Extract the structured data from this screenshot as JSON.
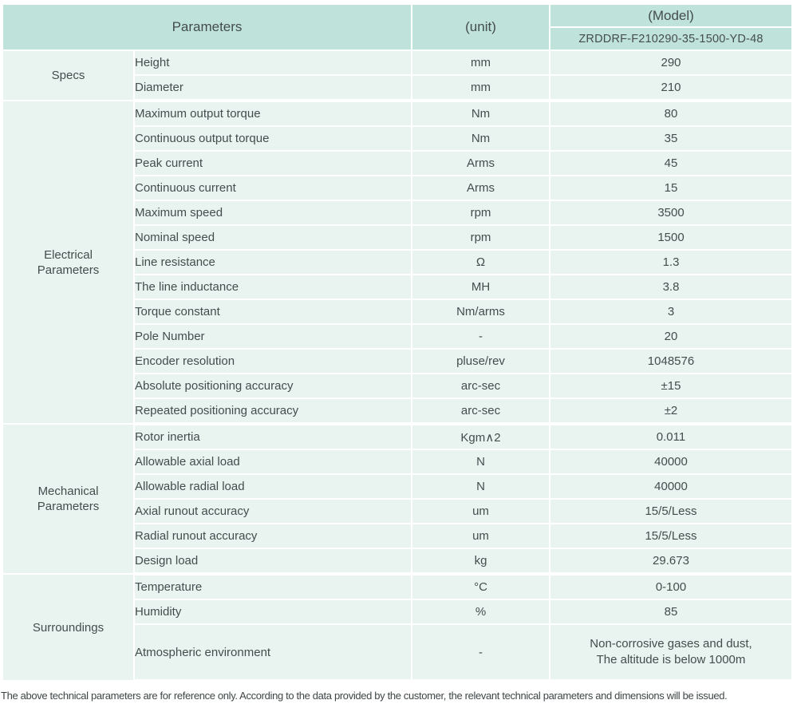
{
  "colors": {
    "header_bg": "#bfe3da",
    "row_bg": "#e9f4f1",
    "divider": "#ffffff",
    "text": "#454c4e"
  },
  "header": {
    "parameters_label": "Parameters",
    "unit_label": "(unit)",
    "model_label": "(Model)",
    "model_value": "ZRDDRF-F210290-35-1500-YD-48"
  },
  "groups": [
    {
      "name": "Specs",
      "rows": [
        {
          "param": "Height",
          "unit": "mm",
          "value": "290"
        },
        {
          "param": "Diameter",
          "unit": "mm",
          "value": "210"
        }
      ]
    },
    {
      "name": "Electrical\nParameters",
      "rows": [
        {
          "param": "Maximum output torque",
          "unit": "Nm",
          "value": "80"
        },
        {
          "param": "Continuous output torque",
          "unit": "Nm",
          "value": "35"
        },
        {
          "param": "Peak current",
          "unit": "Arms",
          "value": "45"
        },
        {
          "param": "Continuous current",
          "unit": "Arms",
          "value": "15"
        },
        {
          "param": "Maximum speed",
          "unit": "rpm",
          "value": "3500"
        },
        {
          "param": "Nominal speed",
          "unit": "rpm",
          "value": "1500"
        },
        {
          "param": "Line resistance",
          "unit": "Ω",
          "value": "1.3"
        },
        {
          "param": "The line inductance",
          "unit": "MH",
          "value": "3.8"
        },
        {
          "param": "Torque constant",
          "unit": "Nm/arms",
          "value": "3"
        },
        {
          "param": "Pole Number",
          "unit": "-",
          "value": "20"
        },
        {
          "param": "Encoder resolution",
          "unit": "pluse/rev",
          "value": "1048576"
        },
        {
          "param": "Absolute positioning accuracy",
          "unit": "arc-sec",
          "value": "±15"
        },
        {
          "param": "Repeated positioning accuracy",
          "unit": "arc-sec",
          "value": "±2"
        }
      ]
    },
    {
      "name": "Mechanical\nParameters",
      "rows": [
        {
          "param": "Rotor inertia",
          "unit": "Kgm∧2",
          "value": "0.011"
        },
        {
          "param": "Allowable axial load",
          "unit": "N",
          "value": "40000"
        },
        {
          "param": "Allowable radial load",
          "unit": "N",
          "value": "40000"
        },
        {
          "param": "Axial runout accuracy",
          "unit": "um",
          "value": "15/5/Less"
        },
        {
          "param": "Radial runout accuracy",
          "unit": "um",
          "value": "15/5/Less"
        },
        {
          "param": "Design load",
          "unit": "kg",
          "value": "29.673"
        }
      ]
    },
    {
      "name": "Surroundings",
      "rows": [
        {
          "param": "Temperature",
          "unit": "°C",
          "value": "0-100"
        },
        {
          "param": "Humidity",
          "unit": "%",
          "value": "85"
        },
        {
          "param": "Atmospheric environment",
          "unit": "-",
          "value": "Non-corrosive gases and dust,\nThe altitude is below 1000m",
          "tall": true
        }
      ]
    }
  ],
  "footer_note": "The above technical parameters are for reference only. According to the data provided by the customer, the relevant technical parameters and dimensions will be issued."
}
